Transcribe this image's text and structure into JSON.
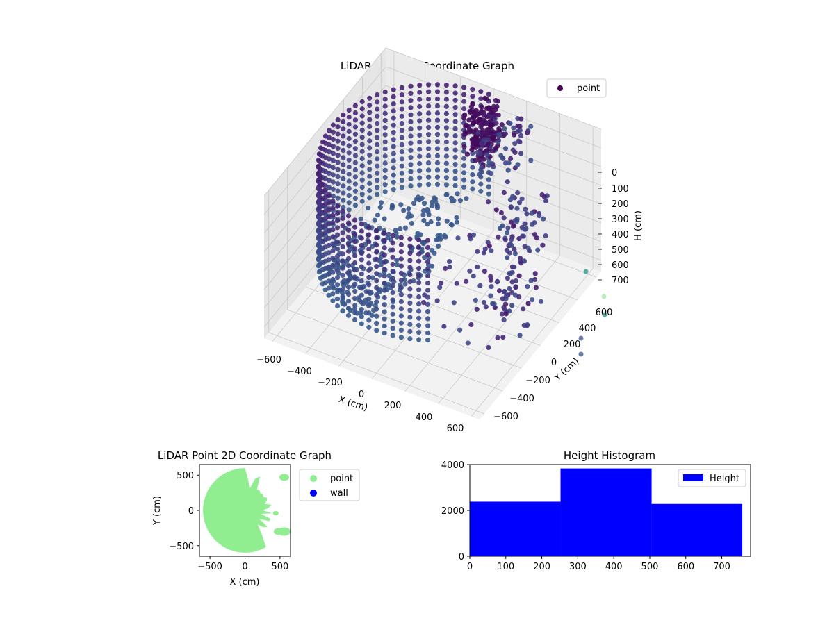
{
  "colors": {
    "viridis_dark": "#440154",
    "viridis_mid": "#3b528b",
    "viridis_teal": "#21918c",
    "viridis_green": "#5ec962",
    "point_2d": "#90ee90",
    "wall_2d": "#0000ff",
    "histogram": "#0000ff",
    "pane": "#f2f2f2",
    "grid": "#c8c8c8"
  },
  "chart_data": [
    {
      "type": "scatter",
      "projection": "3d",
      "title": "LiDAR Point 3D Coordinate Graph",
      "xlabel": "X (cm)",
      "ylabel": "Y (cm)",
      "zlabel": "H (cm)",
      "xlim": [
        -650,
        650
      ],
      "ylim": [
        -650,
        650
      ],
      "zlim": [
        0,
        760
      ],
      "z_inverted": true,
      "xticks": [
        "−600",
        "−400",
        "−200",
        "0",
        "200",
        "400",
        "600"
      ],
      "yticks": [
        "−600",
        "−400",
        "−200",
        "0",
        "200",
        "400",
        "600"
      ],
      "zticks": [
        "0",
        "100",
        "200",
        "300",
        "400",
        "500",
        "600",
        "700"
      ],
      "colormap": "viridis",
      "legend": {
        "placement": "upper-right",
        "entries": [
          "point"
        ]
      },
      "grid": true,
      "series": [
        {
          "name": "point",
          "description_shape": "dense cylindrical shell of points, radius about 600, spanning the left half of the scene, with sparse points and clusters on the right",
          "shell_radius": 600,
          "shell_angle_deg": [
            90,
            270
          ],
          "height_range": [
            0,
            560
          ],
          "clusters": [
            {
              "x": 180,
              "y": 420,
              "h": 100,
              "count": 70
            },
            {
              "x": 400,
              "y": 200,
              "h": 300,
              "count": 60
            },
            {
              "x": 560,
              "y": -100,
              "h": 450,
              "count": 40
            }
          ],
          "outliers": [
            {
              "x": 630,
              "y": 520,
              "h": 620
            },
            {
              "x": 650,
              "y": 640,
              "h": 720
            },
            {
              "x": 660,
              "y": 690,
              "h": 730
            },
            {
              "x": 640,
              "y": 580,
              "h": 760
            },
            {
              "x": 610,
              "y": 540,
              "h": 770
            }
          ]
        }
      ]
    },
    {
      "type": "scatter",
      "title": "LiDAR Point 2D Coordinate Graph",
      "xlabel": "X (cm)",
      "ylabel": "Y (cm)",
      "xlim": [
        -650,
        650
      ],
      "ylim": [
        -650,
        650
      ],
      "xticks": [
        -500,
        0,
        500
      ],
      "yticks": [
        -500,
        0,
        500
      ],
      "legend": {
        "placement": "outside-right",
        "entries": [
          "point",
          "wall"
        ]
      },
      "series": [
        {
          "name": "point",
          "description_shape": "filled disk of radius about 600 covering the left half and center, ragged on the right with gaps near x 0..150, y 450..650 and a hole near x 450, y 450"
        },
        {
          "name": "wall",
          "points": []
        }
      ]
    },
    {
      "type": "bar",
      "subtype": "histogram",
      "title": "Height Histogram",
      "xlim": [
        0,
        780
      ],
      "ylim": [
        0,
        4000
      ],
      "xticks": [
        0,
        100,
        200,
        300,
        400,
        500,
        600,
        700
      ],
      "yticks": [
        0,
        2000,
        4000
      ],
      "legend": {
        "placement": "upper-right",
        "entries": [
          "Height"
        ]
      },
      "bins": [
        [
          0,
          252
        ],
        [
          252,
          505
        ],
        [
          505,
          757
        ]
      ],
      "values": [
        2380,
        3830,
        2280
      ],
      "series": [
        {
          "name": "Height",
          "values": [
            2380,
            3830,
            2280
          ]
        }
      ]
    }
  ]
}
